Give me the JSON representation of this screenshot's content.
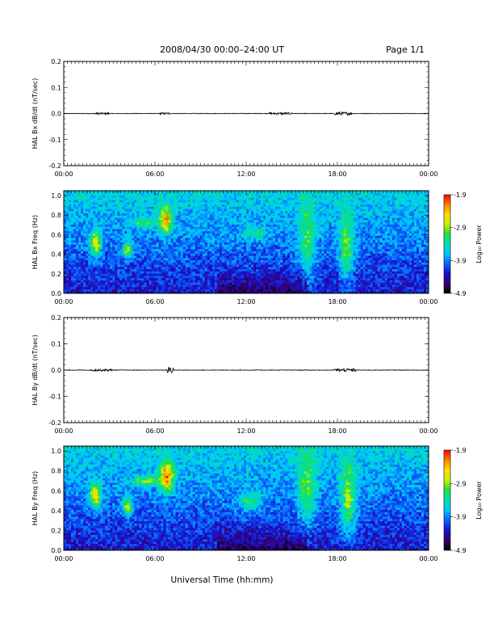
{
  "header": {
    "title": "2008/04/30   00:00–24:00 UT",
    "page": "Page 1/1"
  },
  "xlabel": "Universal Time (hh:mm)",
  "time_ticks": [
    "00:00",
    "06:00",
    "12:00",
    "18:00",
    "00:00"
  ],
  "colorbar_colors": [
    "#000000",
    "#3a006e",
    "#1a10c8",
    "#0a60ff",
    "#00c8ff",
    "#00e0b0",
    "#20e040",
    "#c8f000",
    "#ffe000",
    "#ff8000",
    "#ff0000"
  ],
  "chart_data": [
    {
      "type": "line",
      "ylabel": "HAL Bx dB/dt (nT/sec)",
      "xlim": [
        0,
        24
      ],
      "ylim": [
        -0.2,
        0.2
      ],
      "yticks": [
        "0.2",
        "0.1",
        "0.0",
        "-0.1",
        "-0.2"
      ],
      "baseline": 0.0,
      "activity": [
        {
          "t_start": 2.0,
          "t_end": 3.0,
          "amplitude": 0.004
        },
        {
          "t_start": 6.3,
          "t_end": 7.0,
          "amplitude": 0.004
        },
        {
          "t_start": 13.5,
          "t_end": 15.0,
          "amplitude": 0.004
        },
        {
          "t_start": 17.8,
          "t_end": 19.0,
          "amplitude": 0.006
        }
      ]
    },
    {
      "type": "heatmap",
      "ylabel": "HAL Bx Freq (Hz)",
      "xlim": [
        0,
        24
      ],
      "ylim": [
        0,
        1.05
      ],
      "yticks": [
        "1.0",
        "0.8",
        "0.6",
        "0.4",
        "0.2",
        "0.0"
      ],
      "colorbar": {
        "label": "Log₁₀ Power",
        "ticks": [
          "-1.9",
          "-2.9",
          "-3.9",
          "-4.9"
        ],
        "range": [
          -4.9,
          -1.9
        ]
      },
      "features": [
        {
          "t": 2.1,
          "f": 0.52,
          "dt": 0.35,
          "df": 0.12,
          "power": -2.4
        },
        {
          "t": 4.2,
          "f": 0.45,
          "dt": 0.3,
          "df": 0.08,
          "power": -2.6
        },
        {
          "t": 6.7,
          "f": 0.76,
          "dt": 0.4,
          "df": 0.13,
          "power": -2.2
        },
        {
          "t": 5.3,
          "f": 0.72,
          "dt": 0.9,
          "df": 0.05,
          "power": -3.1
        },
        {
          "t": 16.0,
          "f": 0.6,
          "dt": 0.6,
          "df": 0.4,
          "power": -3.1
        },
        {
          "t": 18.6,
          "f": 0.5,
          "dt": 0.5,
          "df": 0.35,
          "power": -3.0
        },
        {
          "t": 12.5,
          "f": 0.62,
          "dt": 0.8,
          "df": 0.08,
          "power": -3.3
        }
      ]
    },
    {
      "type": "line",
      "ylabel": "HAL By dB/dt (nT/sec)",
      "xlim": [
        0,
        24
      ],
      "ylim": [
        -0.2,
        0.2
      ],
      "yticks": [
        "0.2",
        "0.1",
        "0.0",
        "-0.1",
        "-0.2"
      ],
      "baseline": 0.0,
      "activity": [
        {
          "t_start": 1.8,
          "t_end": 3.2,
          "amplitude": 0.004
        },
        {
          "t_start": 6.8,
          "t_end": 7.2,
          "amplitude": 0.012
        },
        {
          "t_start": 17.8,
          "t_end": 19.2,
          "amplitude": 0.006
        }
      ]
    },
    {
      "type": "heatmap",
      "ylabel": "HAL By Freq (Hz)",
      "xlim": [
        0,
        24
      ],
      "ylim": [
        0,
        1.05
      ],
      "yticks": [
        "1.0",
        "0.8",
        "0.6",
        "0.4",
        "0.2",
        "0.0"
      ],
      "colorbar": {
        "label": "Log₁₀ Power",
        "ticks": [
          "-1.9",
          "-2.9",
          "-3.9",
          "-4.9"
        ],
        "range": [
          -4.9,
          -1.9
        ]
      },
      "features": [
        {
          "t": 2.1,
          "f": 0.55,
          "dt": 0.35,
          "df": 0.12,
          "power": -2.3
        },
        {
          "t": 4.2,
          "f": 0.45,
          "dt": 0.3,
          "df": 0.08,
          "power": -2.5
        },
        {
          "t": 6.8,
          "f": 0.75,
          "dt": 0.45,
          "df": 0.15,
          "power": -2.1
        },
        {
          "t": 5.4,
          "f": 0.7,
          "dt": 0.9,
          "df": 0.05,
          "power": -2.9
        },
        {
          "t": 16.0,
          "f": 0.65,
          "dt": 0.6,
          "df": 0.35,
          "power": -3.0
        },
        {
          "t": 18.7,
          "f": 0.55,
          "dt": 0.5,
          "df": 0.35,
          "power": -2.8
        },
        {
          "t": 12.3,
          "f": 0.5,
          "dt": 0.8,
          "df": 0.1,
          "power": -3.2
        }
      ]
    }
  ]
}
